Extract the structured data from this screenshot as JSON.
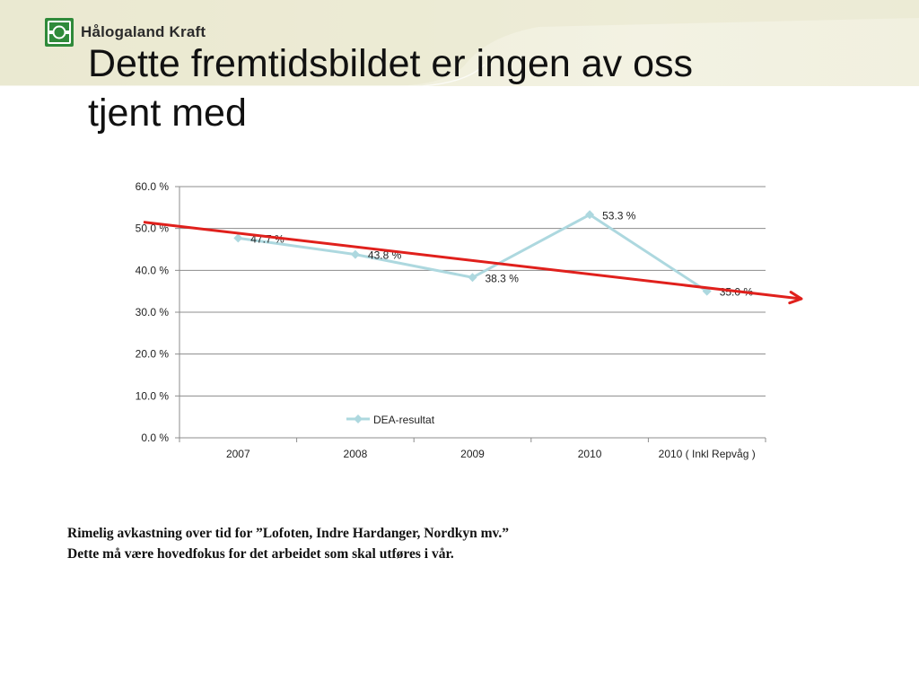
{
  "header": {
    "logo_text": "Hålogaland Kraft",
    "logo_icon": "halogaland-kraft-logo-icon",
    "colors": {
      "brand_green": "#2f8a3a",
      "banner_bg": "#efeed9"
    }
  },
  "title": "Dette fremtidsbildet er ingen av oss tjent med",
  "title_lines": [
    "Dette fremtidsbildet er ingen av oss",
    "tjent med"
  ],
  "chart_data": {
    "type": "line",
    "categories": [
      "2007",
      "2008",
      "2009",
      "2010",
      "2010 ( Inkl Repvåg )"
    ],
    "series": [
      {
        "name": "DEA-resultat",
        "values": [
          47.7,
          43.8,
          38.3,
          53.3,
          35.0
        ],
        "labels": [
          "47.7 %",
          "43.8 %",
          "38.3 %",
          "53.3 %",
          "35.0 %"
        ],
        "color": "#add8df"
      }
    ],
    "y_ticks": [
      "0.0 %",
      "10.0 %",
      "20.0 %",
      "30.0 %",
      "40.0 %",
      "50.0 %",
      "60.0 %"
    ],
    "ylim": [
      0,
      60
    ],
    "grid": true,
    "legend": "inside-bottom-center",
    "annotations": [
      {
        "type": "trend-arrow",
        "color": "#e0201c",
        "from": 51.5,
        "to": 33.2
      }
    ],
    "xlabel": "",
    "ylabel": ""
  },
  "caption": {
    "line1": "Rimelig avkastning over tid for ”Lofoten, Indre Hardanger, Nordkyn mv.”",
    "line2": "Dette må være hovedfokus for det arbeidet som skal utføres i vår."
  }
}
